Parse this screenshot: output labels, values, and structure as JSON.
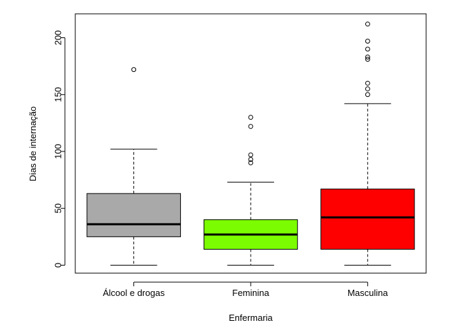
{
  "chart_data": {
    "type": "boxplot",
    "title": "",
    "xlabel": "Enfermaria",
    "ylabel": "Dias de internação",
    "ylim": [
      -7,
      221
    ],
    "yticks": [
      0,
      50,
      100,
      150,
      200
    ],
    "grid": false,
    "legend": "none",
    "categories": [
      "Álcool e drogas",
      "Feminina",
      "Masculina"
    ],
    "boxes": [
      {
        "name": "Álcool e drogas",
        "color": "#a9a9a9",
        "whisker_low": 0,
        "q1": 25,
        "median": 36,
        "q3": 63,
        "whisker_high": 102,
        "outliers": [
          172
        ]
      },
      {
        "name": "Feminina",
        "color": "#7cfc00",
        "whisker_low": 0,
        "q1": 14,
        "median": 27,
        "q3": 40,
        "whisker_high": 73,
        "outliers": [
          90,
          93,
          97,
          122,
          130
        ]
      },
      {
        "name": "Masculina",
        "color": "#ff0000",
        "whisker_low": 0,
        "q1": 14,
        "median": 42,
        "q3": 67,
        "whisker_high": 142,
        "outliers": [
          150,
          155,
          160,
          181,
          183,
          190,
          197,
          212
        ]
      }
    ]
  }
}
